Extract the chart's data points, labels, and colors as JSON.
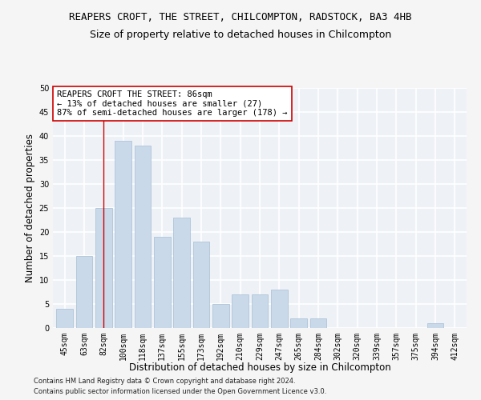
{
  "title": "REAPERS CROFT, THE STREET, CHILCOMPTON, RADSTOCK, BA3 4HB",
  "subtitle": "Size of property relative to detached houses in Chilcompton",
  "xlabel": "Distribution of detached houses by size in Chilcompton",
  "ylabel": "Number of detached properties",
  "footnote1": "Contains HM Land Registry data © Crown copyright and database right 2024.",
  "footnote2": "Contains public sector information licensed under the Open Government Licence v3.0.",
  "categories": [
    "45sqm",
    "63sqm",
    "82sqm",
    "100sqm",
    "118sqm",
    "137sqm",
    "155sqm",
    "173sqm",
    "192sqm",
    "210sqm",
    "229sqm",
    "247sqm",
    "265sqm",
    "284sqm",
    "302sqm",
    "320sqm",
    "339sqm",
    "357sqm",
    "375sqm",
    "394sqm",
    "412sqm"
  ],
  "values": [
    4,
    15,
    25,
    39,
    38,
    19,
    23,
    18,
    5,
    7,
    7,
    8,
    2,
    2,
    0,
    0,
    0,
    0,
    0,
    1,
    0
  ],
  "bar_color": "#c9d9ea",
  "bar_edge_color": "#aec4d8",
  "vline_x_idx": 2,
  "vline_color": "#cc0000",
  "annotation_text": "REAPERS CROFT THE STREET: 86sqm\n← 13% of detached houses are smaller (27)\n87% of semi-detached houses are larger (178) →",
  "annotation_box_color": "#ffffff",
  "annotation_box_edge": "#cc0000",
  "ylim": [
    0,
    50
  ],
  "yticks": [
    0,
    5,
    10,
    15,
    20,
    25,
    30,
    35,
    40,
    45,
    50
  ],
  "bg_color": "#eef2f7",
  "fig_bg_color": "#f5f5f5",
  "grid_color": "#ffffff",
  "title_fontsize": 9,
  "subtitle_fontsize": 9,
  "axis_label_fontsize": 8.5,
  "tick_fontsize": 7,
  "annotation_fontsize": 7.5,
  "footnote_fontsize": 6
}
